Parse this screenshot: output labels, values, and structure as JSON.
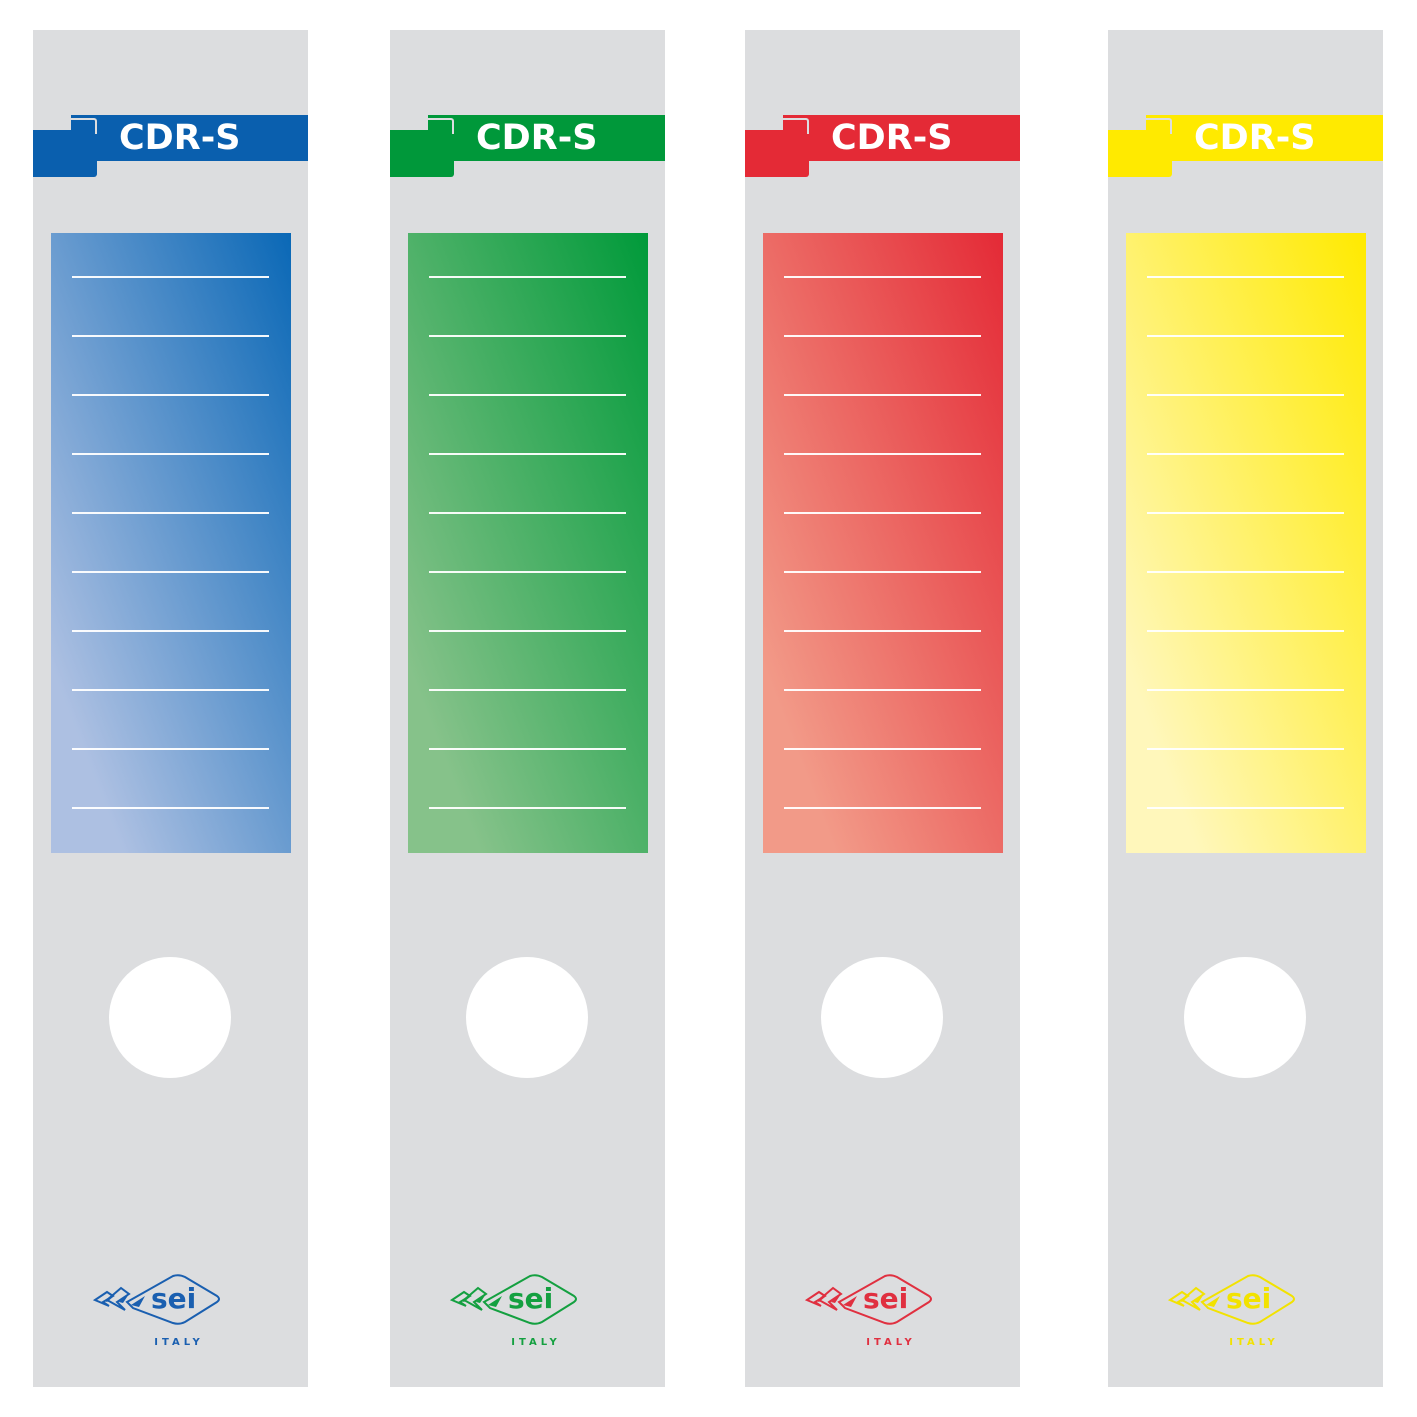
{
  "spines": [
    {
      "title": "CDR-S",
      "brand": "sei",
      "country": "ITALY",
      "accent": "#0a5fae",
      "grad_dark": "#0a68b6",
      "grad_light": "#adc0e2",
      "logo_color": "#1a5fb0"
    },
    {
      "title": "CDR-S",
      "brand": "sei",
      "country": "ITALY",
      "accent": "#00983a",
      "grad_dark": "#009a3a",
      "grad_light": "#86c28a",
      "logo_color": "#14a040"
    },
    {
      "title": "CDR-S",
      "brand": "sei",
      "country": "ITALY",
      "accent": "#e42a36",
      "grad_dark": "#e42a36",
      "grad_light": "#f29a88",
      "logo_color": "#e03040"
    },
    {
      "title": "CDR-S",
      "brand": "sei",
      "country": "ITALY",
      "accent": "#ffea00",
      "grad_dark": "#ffea00",
      "grad_light": "#fff7bb",
      "logo_color": "#f2e200"
    }
  ],
  "label_line_count": 10
}
